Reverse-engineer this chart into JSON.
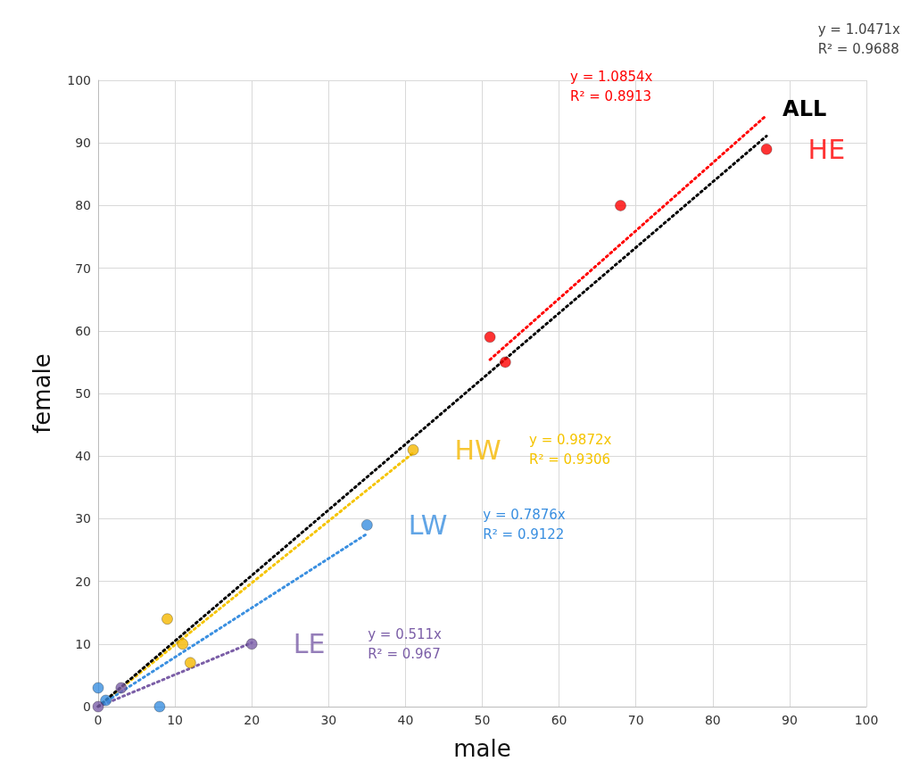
{
  "chart_data": {
    "type": "scatter",
    "xlabel": "male",
    "ylabel": "female",
    "xlim": [
      0,
      100
    ],
    "xticks": [
      0,
      10,
      20,
      30,
      40,
      50,
      60,
      70,
      80,
      90,
      100
    ],
    "ylim": [
      0,
      100
    ],
    "yticks": [
      0,
      10,
      20,
      30,
      40,
      50,
      60,
      70,
      80,
      90,
      100
    ],
    "grid": true,
    "marker": "circle",
    "series": [
      {
        "name": "HE",
        "color": "#ff0000",
        "x": [
          51,
          53,
          68,
          87
        ],
        "values": [
          59,
          55,
          80,
          89
        ]
      },
      {
        "name": "HW",
        "color": "#f5b800",
        "x": [
          9,
          11,
          12,
          41
        ],
        "values": [
          14,
          10,
          7,
          41
        ]
      },
      {
        "name": "LW",
        "color": "#3a8fe0",
        "x": [
          0,
          1,
          8,
          35
        ],
        "values": [
          3,
          1,
          0,
          29
        ]
      },
      {
        "name": "LE",
        "color": "#7b5ea7",
        "x": [
          0,
          3,
          20
        ],
        "values": [
          0,
          3,
          10
        ]
      },
      {
        "type": "line",
        "color": "#ff0000",
        "line_style": "dotted",
        "marker": "none",
        "x": [
          51,
          87
        ],
        "values": [
          55.4,
          94.4
        ]
      },
      {
        "type": "line",
        "color": "#f5c400",
        "line_style": "dotted",
        "marker": "none",
        "x": [
          0,
          41
        ],
        "values": [
          0,
          40.5
        ]
      },
      {
        "type": "line",
        "color": "#3a8fe0",
        "line_style": "dotted",
        "marker": "none",
        "x": [
          0,
          35
        ],
        "values": [
          0,
          27.6
        ]
      },
      {
        "type": "line",
        "color": "#7b5ea7",
        "line_style": "dotted",
        "marker": "none",
        "x": [
          0,
          20
        ],
        "values": [
          0,
          10.2
        ]
      },
      {
        "name": "ALL",
        "type": "line",
        "color": "#000000",
        "line_style": "dotted",
        "marker": "none",
        "x": [
          0,
          87
        ],
        "values": [
          0,
          91.1
        ]
      }
    ],
    "annotations": [
      "y = 1.0854x\nR² = 0.8913",
      "y = 0.9872x\nR² = 0.9306",
      "y = 0.7876x\nR² = 0.9122",
      "y = 0.511x\nR² = 0.967",
      "y = 1.0471x\nR² = 0.9688"
    ]
  }
}
